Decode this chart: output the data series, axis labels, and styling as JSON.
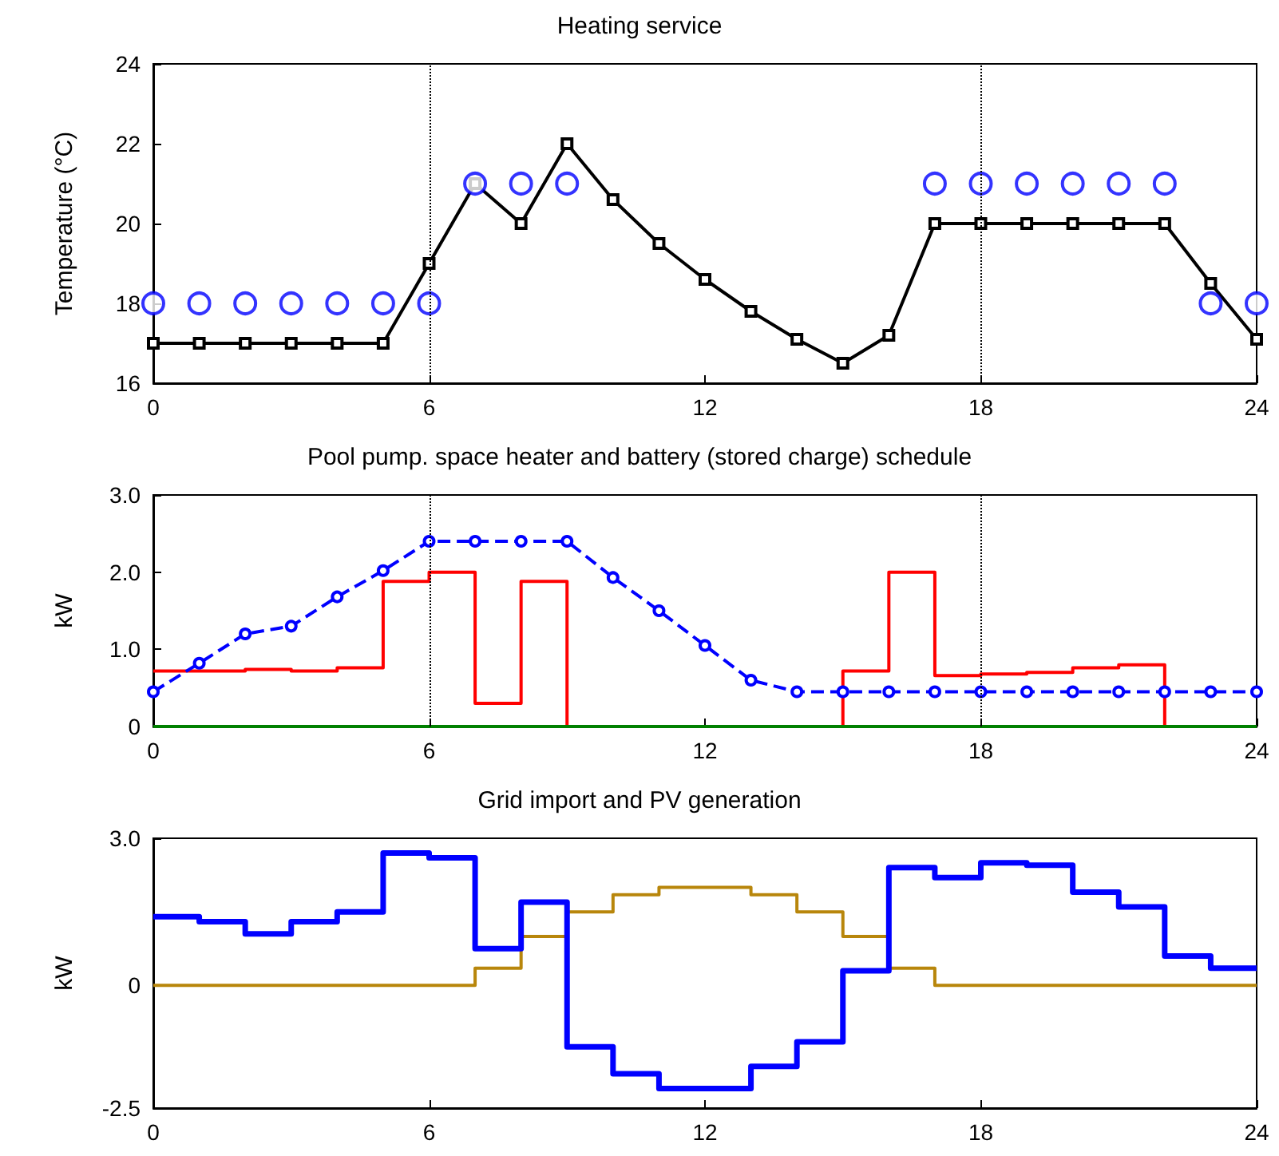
{
  "chart_data": [
    {
      "type": "line",
      "title": "Heating service",
      "ylabel": "Temperature (°C)",
      "x": [
        0,
        1,
        2,
        3,
        4,
        5,
        6,
        7,
        8,
        9,
        10,
        11,
        12,
        13,
        14,
        15,
        16,
        17,
        18,
        19,
        20,
        21,
        22,
        23,
        24
      ],
      "xlim": [
        0,
        24
      ],
      "xticks": [
        0,
        6,
        12,
        18,
        24
      ],
      "ylim": [
        16,
        24
      ],
      "yticks": [
        16,
        18,
        20,
        22,
        24
      ],
      "grid": false,
      "series": [
        {
          "color": "#000000",
          "marker": "square",
          "line_style": "solid",
          "values": [
            17,
            17,
            17,
            17,
            17,
            17,
            19,
            21,
            20,
            22,
            20.6,
            19.5,
            18.6,
            17.8,
            17.1,
            16.5,
            17.2,
            20,
            20,
            20,
            20,
            20,
            20,
            18.5,
            17.1
          ]
        },
        {
          "type": "scatter",
          "color": "#0000ff",
          "marker": "circle",
          "values": [
            18,
            18,
            18,
            18,
            18,
            18,
            18,
            21,
            21,
            21,
            null,
            null,
            null,
            null,
            null,
            null,
            null,
            21,
            21,
            21,
            21,
            21,
            21,
            18,
            18
          ]
        }
      ],
      "ref_lines": [
        {
          "axis": "x",
          "value": 6,
          "line_style": "dotted",
          "color": "#000000"
        },
        {
          "axis": "x",
          "value": 18,
          "line_style": "dotted",
          "color": "#000000"
        }
      ]
    },
    {
      "type": "line",
      "title": "Pool pump. space heater and battery (stored charge) schedule",
      "ylabel": "kW",
      "x": [
        0,
        1,
        2,
        3,
        4,
        5,
        6,
        7,
        8,
        9,
        10,
        11,
        12,
        13,
        14,
        15,
        16,
        17,
        18,
        19,
        20,
        21,
        22,
        23,
        24
      ],
      "xlim": [
        0,
        24
      ],
      "xticks": [
        0,
        6,
        12,
        18,
        24
      ],
      "ylim": [
        0,
        3
      ],
      "yticks": [
        0,
        {
          "value": 1,
          "label": "1.0"
        },
        {
          "value": 2,
          "label": "2.0"
        },
        {
          "value": 3,
          "label": "3.0"
        }
      ],
      "grid": false,
      "series": [
        {
          "type": "step",
          "color": "#ff0000",
          "marker": "none",
          "line_style": "solid",
          "values": [
            0.72,
            0.72,
            0.74,
            0.72,
            0.76,
            1.88,
            2.0,
            0.3,
            1.88,
            0,
            0,
            0,
            0,
            0,
            0,
            0.72,
            2.0,
            0.66,
            0.68,
            0.7,
            0.76,
            0.8,
            0,
            0,
            0
          ]
        },
        {
          "color": "#008000",
          "marker": "none",
          "line_style": "solid",
          "values": [
            0,
            0,
            0,
            0,
            0,
            0,
            0,
            0,
            0,
            0,
            0,
            0,
            0,
            0,
            0,
            0,
            0,
            0,
            0,
            0,
            0,
            0,
            0,
            0,
            0
          ]
        },
        {
          "color": "#0000ff",
          "marker": "circle",
          "line_style": "dashed",
          "values": [
            0.45,
            0.82,
            1.2,
            1.3,
            1.68,
            2.02,
            2.4,
            2.4,
            2.4,
            2.4,
            1.93,
            1.5,
            1.05,
            0.6,
            0.45,
            0.45,
            0.45,
            0.45,
            0.45,
            0.45,
            0.45,
            0.45,
            0.45,
            0.45,
            0.45
          ]
        }
      ],
      "ref_lines": [
        {
          "axis": "x",
          "value": 6,
          "line_style": "dotted",
          "color": "#000000"
        },
        {
          "axis": "x",
          "value": 18,
          "line_style": "dotted",
          "color": "#000000"
        }
      ]
    },
    {
      "type": "step",
      "title": "Grid import and PV generation",
      "ylabel": "kW",
      "x": [
        0,
        1,
        2,
        3,
        4,
        5,
        6,
        7,
        8,
        9,
        10,
        11,
        12,
        13,
        14,
        15,
        16,
        17,
        18,
        19,
        20,
        21,
        22,
        23,
        24
      ],
      "xlim": [
        0,
        24
      ],
      "xticks": [
        0,
        6,
        12,
        18,
        24
      ],
      "ylim": [
        -2.5,
        3
      ],
      "yticks": [
        -2.5,
        0,
        {
          "value": 3,
          "label": "3.0"
        }
      ],
      "grid": false,
      "series": [
        {
          "color": "#b8860b",
          "marker": "none",
          "line_style": "solid",
          "values": [
            0,
            0,
            0,
            0,
            0,
            0,
            0,
            0.35,
            1.0,
            1.5,
            1.85,
            2.0,
            2.0,
            1.85,
            1.5,
            1.0,
            0.35,
            0,
            0,
            0,
            0,
            0,
            0,
            0,
            0
          ]
        },
        {
          "color": "#0000ff",
          "marker": "none",
          "line_style": "solid",
          "values": [
            1.4,
            1.3,
            1.05,
            1.3,
            1.5,
            2.7,
            2.6,
            0.75,
            1.7,
            -1.25,
            -1.8,
            -2.1,
            -2.1,
            -1.65,
            -1.15,
            0.3,
            2.4,
            2.2,
            2.5,
            2.45,
            1.9,
            1.6,
            0.6,
            0.35,
            0.35
          ]
        }
      ]
    }
  ]
}
